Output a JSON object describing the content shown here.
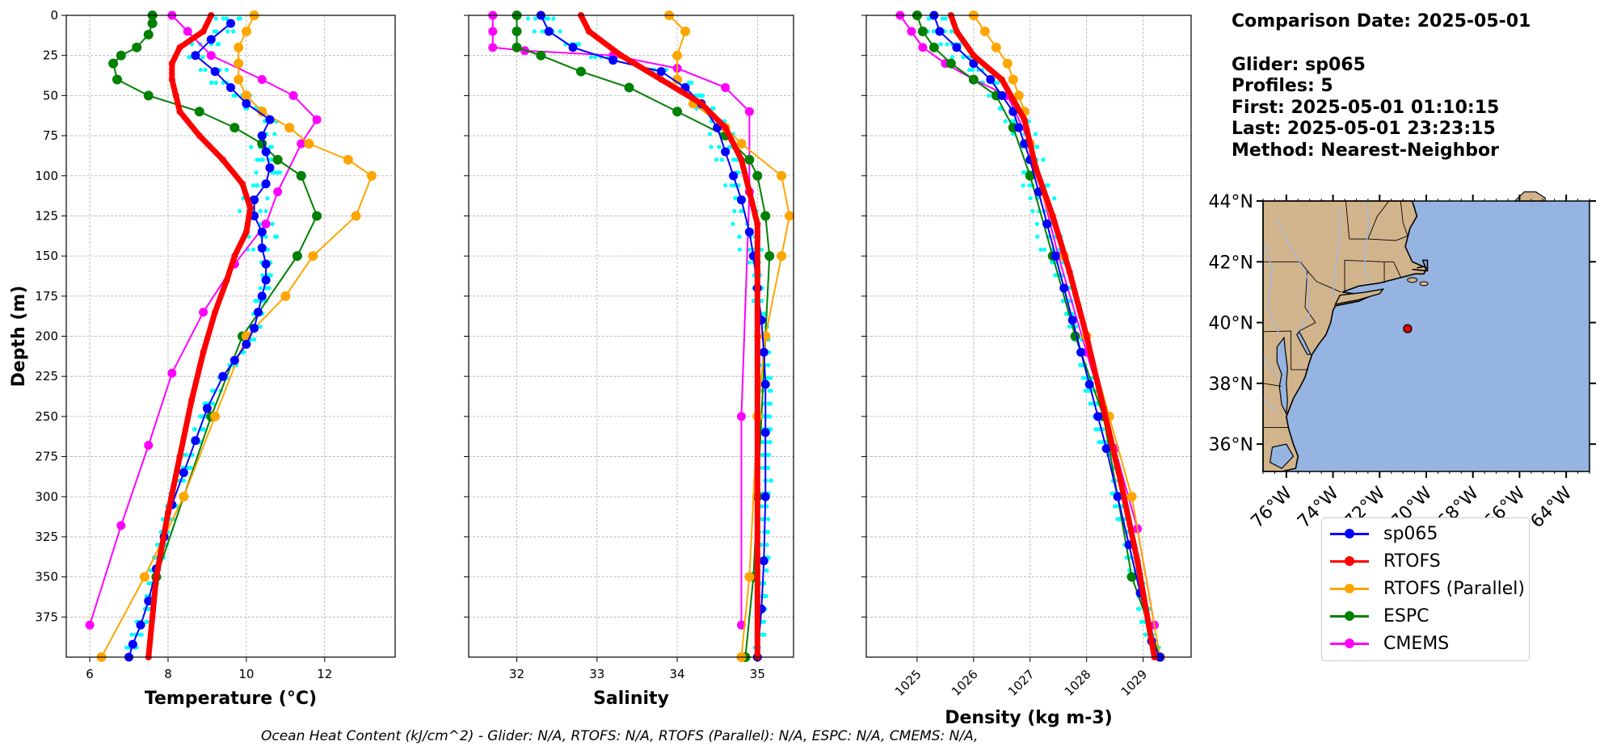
{
  "info": {
    "comparison": "Comparison Date: 2025-05-01",
    "glider": "Glider: sp065",
    "profiles": "Profiles: 5",
    "first": "First: 2025-05-01 01:10:15",
    "last": "Last: 2025-05-01 23:23:15",
    "method": "Method: Nearest-Neighbor"
  },
  "footer": "Ocean Heat Content (kJ/cm^2) - Glider: N/A,  RTOFS: N/A,  RTOFS (Parallel): N/A,  ESPC: N/A,  CMEMS: N/A,",
  "legend": [
    {
      "label": "sp065",
      "color": "#0000ff"
    },
    {
      "label": "RTOFS",
      "color": "#ff0000"
    },
    {
      "label": "RTOFS (Parallel)",
      "color": "#ffa500"
    },
    {
      "label": "ESPC",
      "color": "#008000"
    },
    {
      "label": "CMEMS",
      "color": "#ff00ff"
    }
  ],
  "colors": {
    "sp065": "#0000ff",
    "rtofs": "#ff0000",
    "rtofs_parallel": "#ffa500",
    "espc": "#008000",
    "cmems": "#ff00ff",
    "glider_raw": "#00ffff",
    "land": "#d2b48c",
    "ocean": "#96b4e1",
    "marker": "#e00000"
  },
  "chart_data": [
    {
      "type": "line",
      "xlabel": "Temperature (°C)",
      "ylabel": "Depth (m)",
      "xlim": [
        5.4,
        13.8
      ],
      "ylim": [
        400,
        0
      ],
      "xticks": [
        6,
        8,
        10,
        12
      ],
      "yticks": [
        0,
        25,
        50,
        75,
        100,
        125,
        150,
        175,
        200,
        225,
        250,
        275,
        300,
        325,
        350,
        375
      ],
      "grid": true,
      "series": [
        {
          "name": "sp065",
          "x": [
            9.6,
            9.1,
            8.7,
            9.2,
            9.6,
            10.0,
            10.6,
            10.4,
            10.5,
            10.6,
            10.5,
            10.2,
            10.2,
            10.4,
            10.4,
            10.5,
            10.5,
            10.4,
            10.3,
            10.2,
            10.0,
            9.7,
            9.4,
            9.0,
            8.7,
            8.4,
            8.1,
            7.9,
            7.7,
            7.5,
            7.3,
            7.1,
            7.0
          ],
          "y": [
            5,
            15,
            25,
            35,
            45,
            55,
            65,
            75,
            85,
            95,
            105,
            115,
            125,
            135,
            145,
            155,
            165,
            175,
            185,
            195,
            205,
            215,
            225,
            245,
            265,
            285,
            305,
            325,
            345,
            365,
            380,
            392,
            400
          ]
        },
        {
          "name": "RTOFS",
          "x": [
            9.1,
            8.9,
            8.3,
            8.1,
            8.1,
            8.2,
            8.3,
            8.8,
            9.4,
            9.9,
            10.1,
            10.0,
            9.7,
            9.5,
            9.2,
            8.9,
            8.6,
            8.3,
            8.0,
            7.7,
            7.5
          ],
          "y": [
            0,
            10,
            20,
            30,
            40,
            50,
            60,
            75,
            90,
            105,
            120,
            135,
            150,
            165,
            185,
            210,
            240,
            275,
            310,
            350,
            400
          ]
        },
        {
          "name": "RTOFS (Parallel)",
          "x": [
            10.2,
            10.0,
            9.8,
            9.8,
            9.8,
            10.0,
            10.4,
            11.1,
            11.6,
            12.6,
            13.2,
            12.8,
            11.7,
            11.0,
            10.0,
            9.2,
            8.4,
            7.4,
            6.3
          ],
          "y": [
            0,
            10,
            20,
            30,
            40,
            50,
            60,
            70,
            80,
            90,
            100,
            125,
            150,
            175,
            200,
            250,
            300,
            350,
            400
          ]
        },
        {
          "name": "ESPC",
          "x": [
            7.6,
            7.6,
            7.5,
            7.2,
            6.8,
            6.6,
            6.7,
            7.5,
            8.8,
            9.7,
            10.4,
            10.8,
            11.4,
            11.8,
            11.3,
            9.9,
            9.1,
            7.7
          ],
          "y": [
            0,
            5,
            12,
            20,
            25,
            30,
            40,
            50,
            60,
            70,
            80,
            90,
            100,
            125,
            150,
            200,
            250,
            350
          ]
        },
        {
          "name": "CMEMS",
          "x": [
            8.1,
            8.5,
            9.1,
            10.4,
            11.2,
            11.8,
            11.4,
            10.8,
            10.5,
            9.7,
            8.9,
            8.1,
            7.5,
            6.8,
            6.0
          ],
          "y": [
            0,
            10,
            25,
            40,
            50,
            65,
            80,
            110,
            130,
            155,
            185,
            223,
            268,
            318,
            380
          ]
        }
      ]
    },
    {
      "type": "line",
      "xlabel": "Salinity",
      "xlim": [
        31.4,
        35.45
      ],
      "ylim": [
        400,
        0
      ],
      "xticks": [
        32,
        33,
        34,
        35
      ],
      "grid": true,
      "series": [
        {
          "name": "sp065",
          "x": [
            32.3,
            32.4,
            32.7,
            33.2,
            33.8,
            34.1,
            34.3,
            34.5,
            34.6,
            34.7,
            34.8,
            34.9,
            34.95,
            35.0,
            35.05,
            35.08,
            35.1,
            35.1,
            35.1,
            35.08,
            35.05,
            35.0
          ],
          "y": [
            0,
            10,
            20,
            28,
            35,
            45,
            55,
            70,
            85,
            100,
            115,
            135,
            150,
            170,
            190,
            210,
            230,
            260,
            300,
            340,
            370,
            400
          ]
        },
        {
          "name": "RTOFS",
          "x": [
            32.8,
            32.9,
            33.3,
            33.8,
            34.3,
            34.6,
            34.8,
            34.9,
            35.0,
            35.0,
            35.0,
            35.0
          ],
          "y": [
            0,
            10,
            25,
            40,
            55,
            70,
            90,
            110,
            130,
            160,
            200,
            400
          ]
        },
        {
          "name": "RTOFS (Parallel)",
          "x": [
            33.9,
            34.1,
            34.0,
            34.0,
            34.2,
            34.6,
            34.8,
            35.3,
            35.4,
            35.3,
            35.1,
            35.0,
            34.9,
            34.8
          ],
          "y": [
            0,
            10,
            25,
            40,
            55,
            70,
            80,
            100,
            125,
            150,
            200,
            250,
            350,
            400
          ]
        },
        {
          "name": "ESPC",
          "x": [
            32.0,
            32.0,
            32.0,
            32.3,
            32.8,
            33.4,
            34.0,
            34.6,
            34.9,
            35.0,
            35.1,
            35.15,
            35.1,
            35.0,
            34.95,
            34.85
          ],
          "y": [
            0,
            10,
            20,
            25,
            35,
            45,
            60,
            75,
            90,
            100,
            125,
            150,
            200,
            300,
            350,
            400
          ]
        },
        {
          "name": "CMEMS",
          "x": [
            31.7,
            31.7,
            31.7,
            32.1,
            33.2,
            34.0,
            34.6,
            34.9,
            34.9,
            34.8,
            34.8
          ],
          "y": [
            0,
            10,
            20,
            22,
            25,
            33,
            45,
            60,
            110,
            250,
            380
          ]
        }
      ]
    },
    {
      "type": "line",
      "xlabel": "Density (kg m-3)",
      "xlim": [
        1024.1,
        1029.85
      ],
      "ylim": [
        400,
        0
      ],
      "xticks": [
        1025,
        1026,
        1027,
        1028,
        1029
      ],
      "grid": true,
      "series": [
        {
          "name": "sp065",
          "x": [
            1025.3,
            1025.4,
            1025.7,
            1026.0,
            1026.3,
            1026.5,
            1026.7,
            1026.8,
            1026.9,
            1027.0,
            1027.15,
            1027.3,
            1027.45,
            1027.6,
            1027.75,
            1027.9,
            1028.05,
            1028.2,
            1028.35,
            1028.55,
            1028.75,
            1028.95,
            1029.15,
            1029.3
          ],
          "y": [
            0,
            10,
            20,
            30,
            40,
            50,
            60,
            70,
            80,
            90,
            110,
            130,
            150,
            170,
            190,
            210,
            230,
            250,
            270,
            300,
            330,
            360,
            390,
            400
          ]
        },
        {
          "name": "RTOFS",
          "x": [
            1025.6,
            1025.7,
            1026.0,
            1026.5,
            1026.9,
            1027.1,
            1027.4,
            1027.7,
            1028.0,
            1028.3,
            1028.6,
            1028.9,
            1029.2
          ],
          "y": [
            0,
            10,
            25,
            40,
            65,
            95,
            125,
            160,
            200,
            245,
            290,
            340,
            400
          ]
        },
        {
          "name": "RTOFS (Parallel)",
          "x": [
            1026.0,
            1026.2,
            1026.4,
            1026.6,
            1026.7,
            1026.8,
            1026.9,
            1027.0,
            1027.2,
            1027.6,
            1028.0,
            1028.4,
            1028.8,
            1029.3
          ],
          "y": [
            0,
            10,
            20,
            30,
            40,
            50,
            60,
            80,
            110,
            150,
            200,
            250,
            300,
            400
          ]
        },
        {
          "name": "ESPC",
          "x": [
            1025.0,
            1025.1,
            1025.3,
            1025.6,
            1026.0,
            1026.4,
            1026.7,
            1027.0,
            1027.4,
            1027.8,
            1028.3,
            1028.8,
            1029.3
          ],
          "y": [
            0,
            10,
            20,
            30,
            40,
            50,
            70,
            100,
            150,
            200,
            250,
            350,
            400
          ]
        },
        {
          "name": "CMEMS",
          "x": [
            1024.7,
            1024.9,
            1025.1,
            1025.5,
            1026.0,
            1026.6,
            1027.0,
            1027.5,
            1028.0,
            1028.5,
            1028.9,
            1029.2
          ],
          "y": [
            0,
            10,
            20,
            30,
            40,
            50,
            80,
            150,
            210,
            270,
            320,
            380
          ]
        }
      ]
    },
    {
      "type": "map",
      "xticks": [
        "76°W",
        "74°W",
        "72°W",
        "70°W",
        "68°W",
        "66°W",
        "64°W"
      ],
      "yticks": [
        "44°N",
        "42°N",
        "40°N",
        "38°N",
        "36°N"
      ],
      "lon_range": [
        -77,
        -63
      ],
      "lat_range": [
        35.1,
        44
      ],
      "glider_position": {
        "lon": -70.8,
        "lat": 39.8
      }
    }
  ]
}
